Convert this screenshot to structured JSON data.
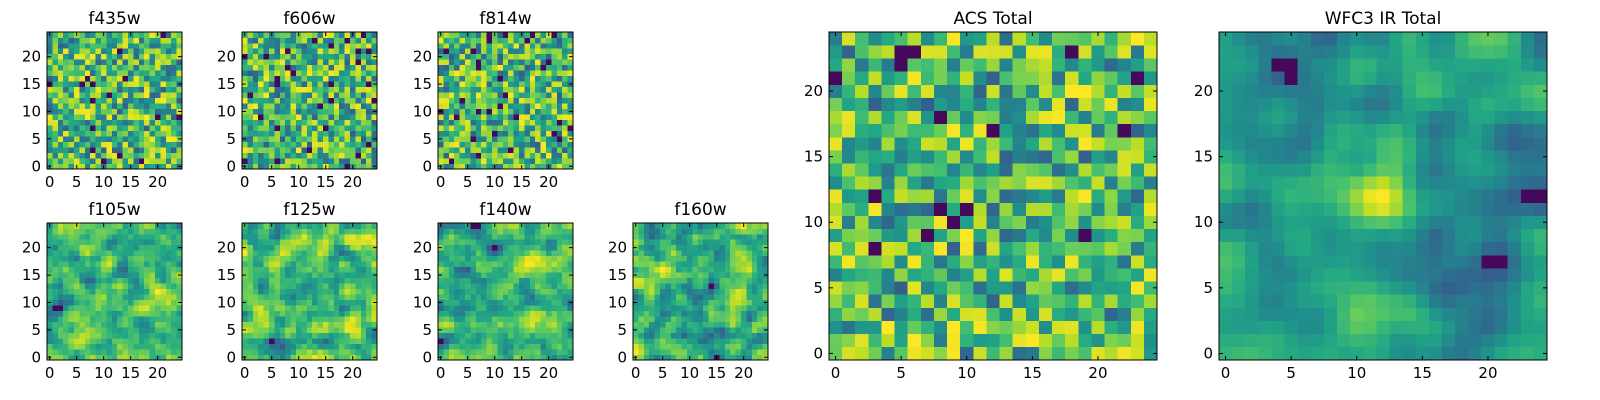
{
  "figure": {
    "colormap": "viridis",
    "colors": {
      "frame": "#000000",
      "background": "#ffffff"
    }
  },
  "chart_data": [
    {
      "type": "heatmap",
      "title": "f435w",
      "grid_size": 25,
      "xlim": [
        -0.5,
        24.5
      ],
      "ylim": [
        -0.5,
        24.5
      ],
      "xticks": [
        0,
        5,
        10,
        15,
        20
      ],
      "yticks": [
        0,
        5,
        10,
        15,
        20
      ],
      "noise": "white",
      "seed": 435,
      "grid": false
    },
    {
      "type": "heatmap",
      "title": "f606w",
      "grid_size": 25,
      "xlim": [
        -0.5,
        24.5
      ],
      "ylim": [
        -0.5,
        24.5
      ],
      "xticks": [
        0,
        5,
        10,
        15,
        20
      ],
      "yticks": [
        0,
        5,
        10,
        15,
        20
      ],
      "noise": "white",
      "seed": 606,
      "grid": false
    },
    {
      "type": "heatmap",
      "title": "f814w",
      "grid_size": 25,
      "xlim": [
        -0.5,
        24.5
      ],
      "ylim": [
        -0.5,
        24.5
      ],
      "xticks": [
        0,
        5,
        10,
        15,
        20
      ],
      "yticks": [
        0,
        5,
        10,
        15,
        20
      ],
      "noise": "white",
      "seed": 814,
      "grid": false
    },
    {
      "type": "heatmap",
      "title": "f105w",
      "grid_size": 25,
      "xlim": [
        -0.5,
        24.5
      ],
      "ylim": [
        -0.5,
        24.5
      ],
      "xticks": [
        0,
        5,
        10,
        15,
        20
      ],
      "yticks": [
        0,
        5,
        10,
        15,
        20
      ],
      "noise": "correlated",
      "seed": 105,
      "grid": false
    },
    {
      "type": "heatmap",
      "title": "f125w",
      "grid_size": 25,
      "xlim": [
        -0.5,
        24.5
      ],
      "ylim": [
        -0.5,
        24.5
      ],
      "xticks": [
        0,
        5,
        10,
        15,
        20
      ],
      "yticks": [
        0,
        5,
        10,
        15,
        20
      ],
      "noise": "correlated",
      "seed": 125,
      "grid": false
    },
    {
      "type": "heatmap",
      "title": "f140w",
      "grid_size": 25,
      "xlim": [
        -0.5,
        24.5
      ],
      "ylim": [
        -0.5,
        24.5
      ],
      "xticks": [
        0,
        5,
        10,
        15,
        20
      ],
      "yticks": [
        0,
        5,
        10,
        15,
        20
      ],
      "noise": "correlated",
      "seed": 140,
      "grid": false
    },
    {
      "type": "heatmap",
      "title": "f160w",
      "grid_size": 25,
      "xlim": [
        -0.5,
        24.5
      ],
      "ylim": [
        -0.5,
        24.5
      ],
      "xticks": [
        0,
        5,
        10,
        15,
        20
      ],
      "yticks": [
        0,
        5,
        10,
        15,
        20
      ],
      "noise": "correlated",
      "seed": 160,
      "grid": false
    },
    {
      "type": "heatmap",
      "title": "ACS Total",
      "grid_size": 25,
      "xlim": [
        -0.5,
        24.5
      ],
      "ylim": [
        -0.5,
        24.5
      ],
      "xticks": [
        0,
        5,
        10,
        15,
        20
      ],
      "yticks": [
        0,
        5,
        10,
        15,
        20
      ],
      "noise": "white",
      "seed": 999,
      "grid": false
    },
    {
      "type": "heatmap",
      "title": "WFC3 IR Total",
      "grid_size": 25,
      "xlim": [
        -0.5,
        24.5
      ],
      "ylim": [
        -0.5,
        24.5
      ],
      "xticks": [
        0,
        5,
        10,
        15,
        20
      ],
      "yticks": [
        0,
        5,
        10,
        15,
        20
      ],
      "noise": "smooth",
      "seed": 777,
      "grid": false,
      "peak": {
        "x": 12,
        "y": 12
      }
    }
  ]
}
